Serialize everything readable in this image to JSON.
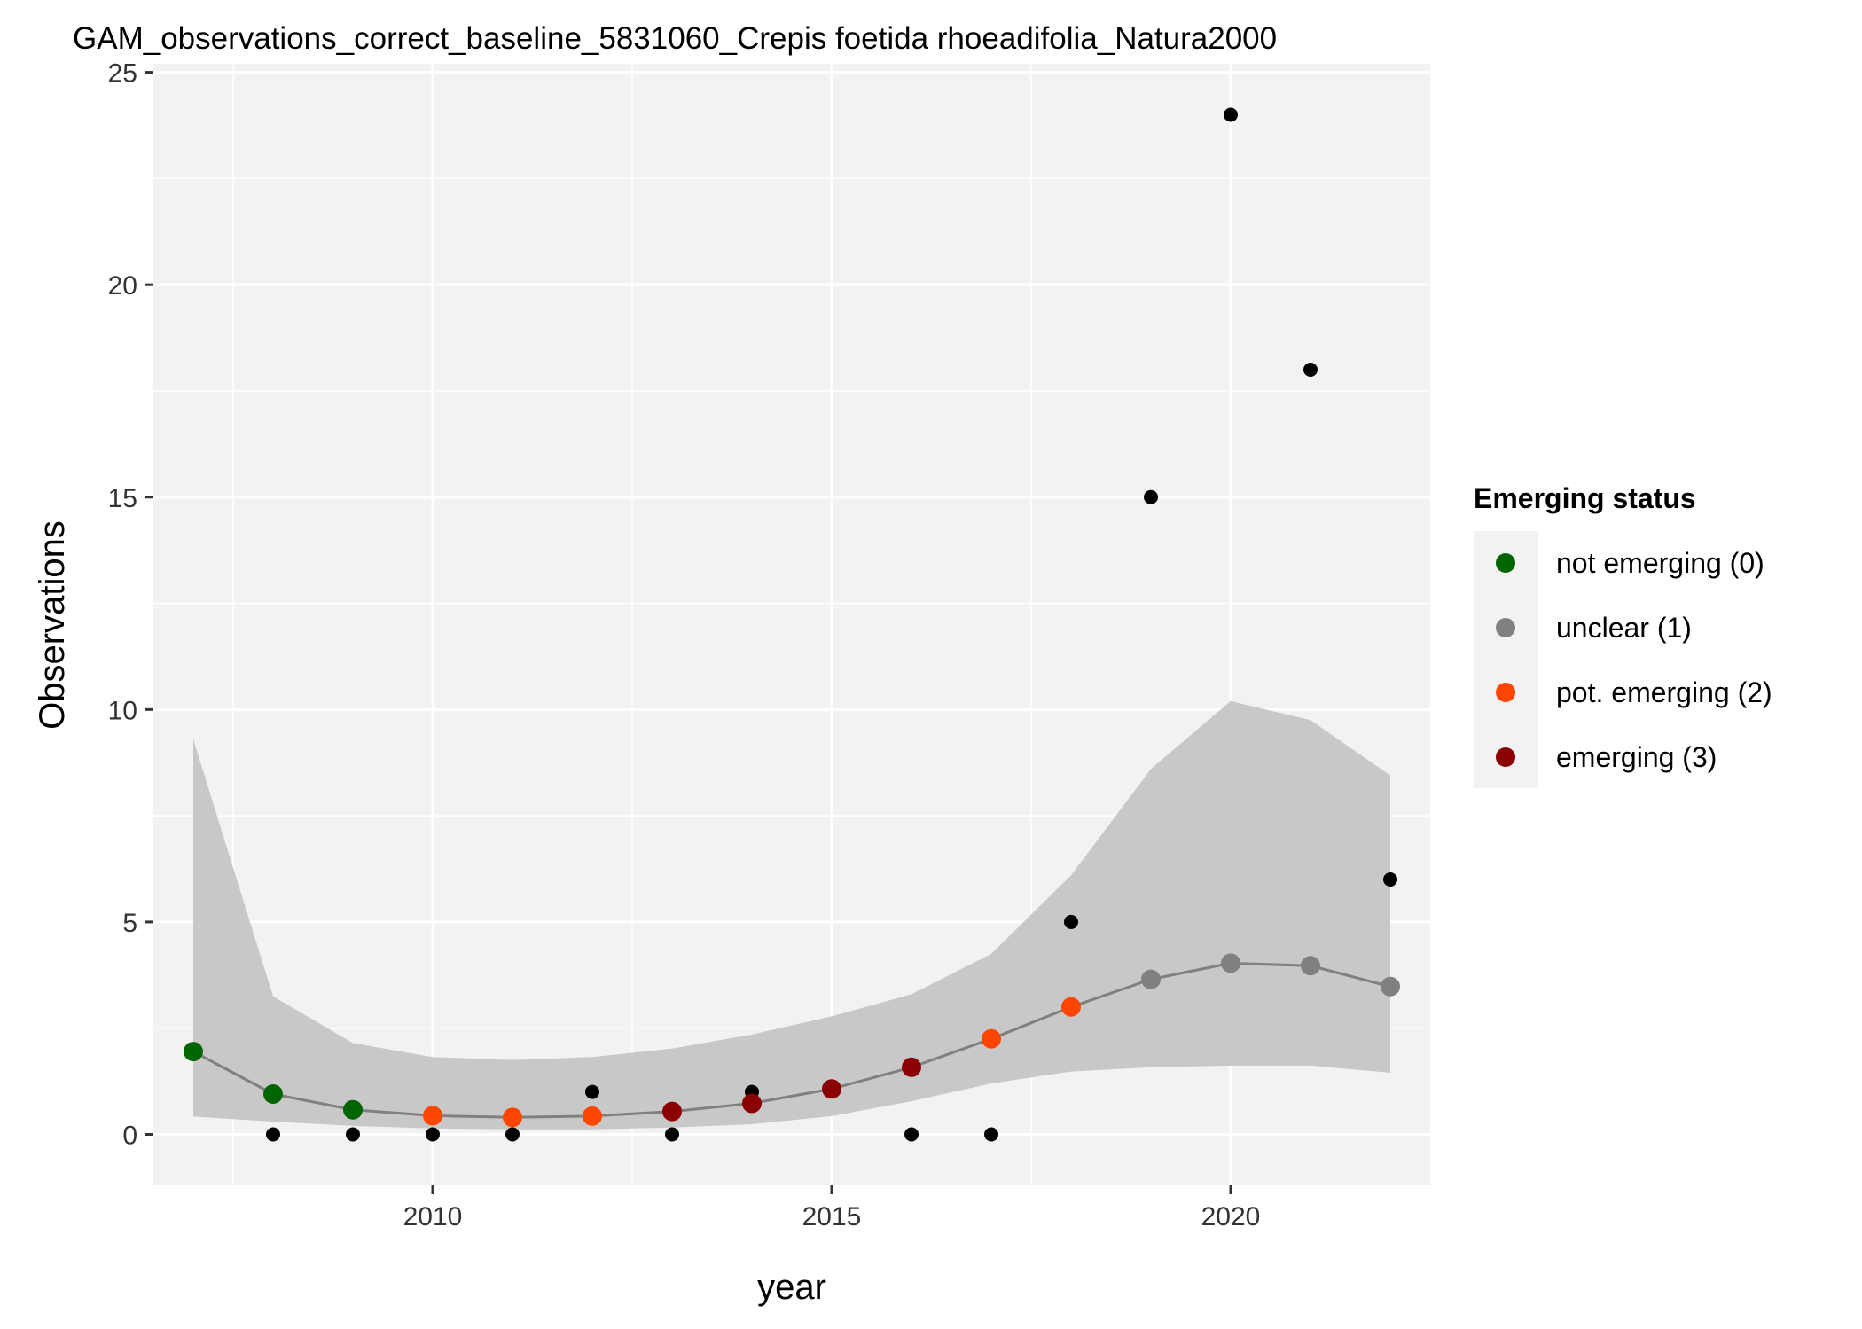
{
  "chart_data": {
    "type": "scatter",
    "title": "GAM_observations_correct_baseline_5831060_Crepis foetida rhoeadifolia_Natura2000",
    "xlabel": "year",
    "ylabel": "Observations",
    "xlim": [
      2006.5,
      2022.5
    ],
    "ylim": [
      -1.2,
      25.2
    ],
    "x_ticks": [
      2010,
      2015,
      2020
    ],
    "x_tick_labels": [
      "2010",
      "2015",
      "2020"
    ],
    "y_ticks": [
      0,
      5,
      10,
      15,
      20,
      25
    ],
    "y_tick_labels": [
      "0",
      "5",
      "10",
      "15",
      "20",
      "25"
    ],
    "grid": true,
    "legend": {
      "title": "Emerging status",
      "placement": "right",
      "entries": [
        {
          "label": "not emerging (0)",
          "color": "#006400"
        },
        {
          "label": "unclear (1)",
          "color": "#808080"
        },
        {
          "label": "pot. emerging (2)",
          "color": "#FF4500"
        },
        {
          "label": "emerging (3)",
          "color": "#8B0000"
        }
      ]
    },
    "observed": {
      "color": "#000000",
      "points": [
        {
          "x": 2008,
          "y": 0
        },
        {
          "x": 2009,
          "y": 0
        },
        {
          "x": 2010,
          "y": 0
        },
        {
          "x": 2011,
          "y": 0
        },
        {
          "x": 2012,
          "y": 1
        },
        {
          "x": 2013,
          "y": 0
        },
        {
          "x": 2014,
          "y": 1
        },
        {
          "x": 2016,
          "y": 0
        },
        {
          "x": 2017,
          "y": 0
        },
        {
          "x": 2018,
          "y": 5
        },
        {
          "x": 2019,
          "y": 15
        },
        {
          "x": 2020,
          "y": 24
        },
        {
          "x": 2021,
          "y": 18
        },
        {
          "x": 2022,
          "y": 6
        }
      ]
    },
    "fitted": {
      "line_color": "#808080",
      "band_color": "#C8C8C8",
      "points": [
        {
          "x": 2007,
          "y": 1.95,
          "lower": 0.42,
          "upper": 9.3,
          "status": 0
        },
        {
          "x": 2008,
          "y": 0.95,
          "lower": 0.3,
          "upper": 3.25,
          "status": 0
        },
        {
          "x": 2009,
          "y": 0.58,
          "lower": 0.2,
          "upper": 2.15,
          "status": 0
        },
        {
          "x": 2010,
          "y": 0.44,
          "lower": 0.14,
          "upper": 1.82,
          "status": 2
        },
        {
          "x": 2011,
          "y": 0.4,
          "lower": 0.12,
          "upper": 1.75,
          "status": 2
        },
        {
          "x": 2012,
          "y": 0.43,
          "lower": 0.12,
          "upper": 1.82,
          "status": 2
        },
        {
          "x": 2013,
          "y": 0.54,
          "lower": 0.16,
          "upper": 2.02,
          "status": 3
        },
        {
          "x": 2014,
          "y": 0.73,
          "lower": 0.24,
          "upper": 2.35,
          "status": 3
        },
        {
          "x": 2015,
          "y": 1.07,
          "lower": 0.43,
          "upper": 2.78,
          "status": 3
        },
        {
          "x": 2016,
          "y": 1.58,
          "lower": 0.78,
          "upper": 3.3,
          "status": 3
        },
        {
          "x": 2017,
          "y": 2.25,
          "lower": 1.2,
          "upper": 4.25,
          "status": 2
        },
        {
          "x": 2018,
          "y": 3.0,
          "lower": 1.48,
          "upper": 6.1,
          "status": 2
        },
        {
          "x": 2019,
          "y": 3.65,
          "lower": 1.58,
          "upper": 8.6,
          "status": 1
        },
        {
          "x": 2020,
          "y": 4.03,
          "lower": 1.62,
          "upper": 10.2,
          "status": 1
        },
        {
          "x": 2021,
          "y": 3.97,
          "lower": 1.62,
          "upper": 9.75,
          "status": 1
        },
        {
          "x": 2022,
          "y": 3.48,
          "lower": 1.45,
          "upper": 8.45,
          "status": 1
        }
      ]
    }
  }
}
